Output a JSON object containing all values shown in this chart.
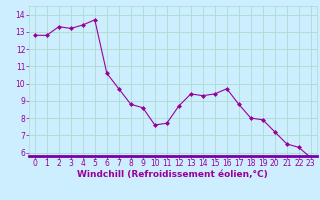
{
  "x": [
    0,
    1,
    2,
    3,
    4,
    5,
    6,
    7,
    8,
    9,
    10,
    11,
    12,
    13,
    14,
    15,
    16,
    17,
    18,
    19,
    20,
    21,
    22,
    23
  ],
  "y": [
    12.8,
    12.8,
    13.3,
    13.2,
    13.4,
    13.7,
    10.6,
    9.7,
    8.8,
    8.6,
    7.6,
    7.7,
    8.7,
    9.4,
    9.3,
    9.4,
    9.7,
    8.8,
    8.0,
    7.9,
    7.2,
    6.5,
    6.3,
    5.7
  ],
  "line_color": "#990099",
  "marker": "D",
  "marker_size": 2.0,
  "bg_color": "#cceeff",
  "grid_color": "#aaddcc",
  "xlabel": "Windchill (Refroidissement éolien,°C)",
  "xlabel_color": "#990099",
  "xlabel_fontsize": 6.5,
  "tick_color": "#990099",
  "tick_fontsize": 5.5,
  "ylim": [
    5.8,
    14.5
  ],
  "yticks": [
    6,
    7,
    8,
    9,
    10,
    11,
    12,
    13,
    14
  ],
  "xlim": [
    -0.5,
    23.5
  ],
  "xticks": [
    0,
    1,
    2,
    3,
    4,
    5,
    6,
    7,
    8,
    9,
    10,
    11,
    12,
    13,
    14,
    15,
    16,
    17,
    18,
    19,
    20,
    21,
    22,
    23
  ],
  "bar_color": "#7700aa"
}
